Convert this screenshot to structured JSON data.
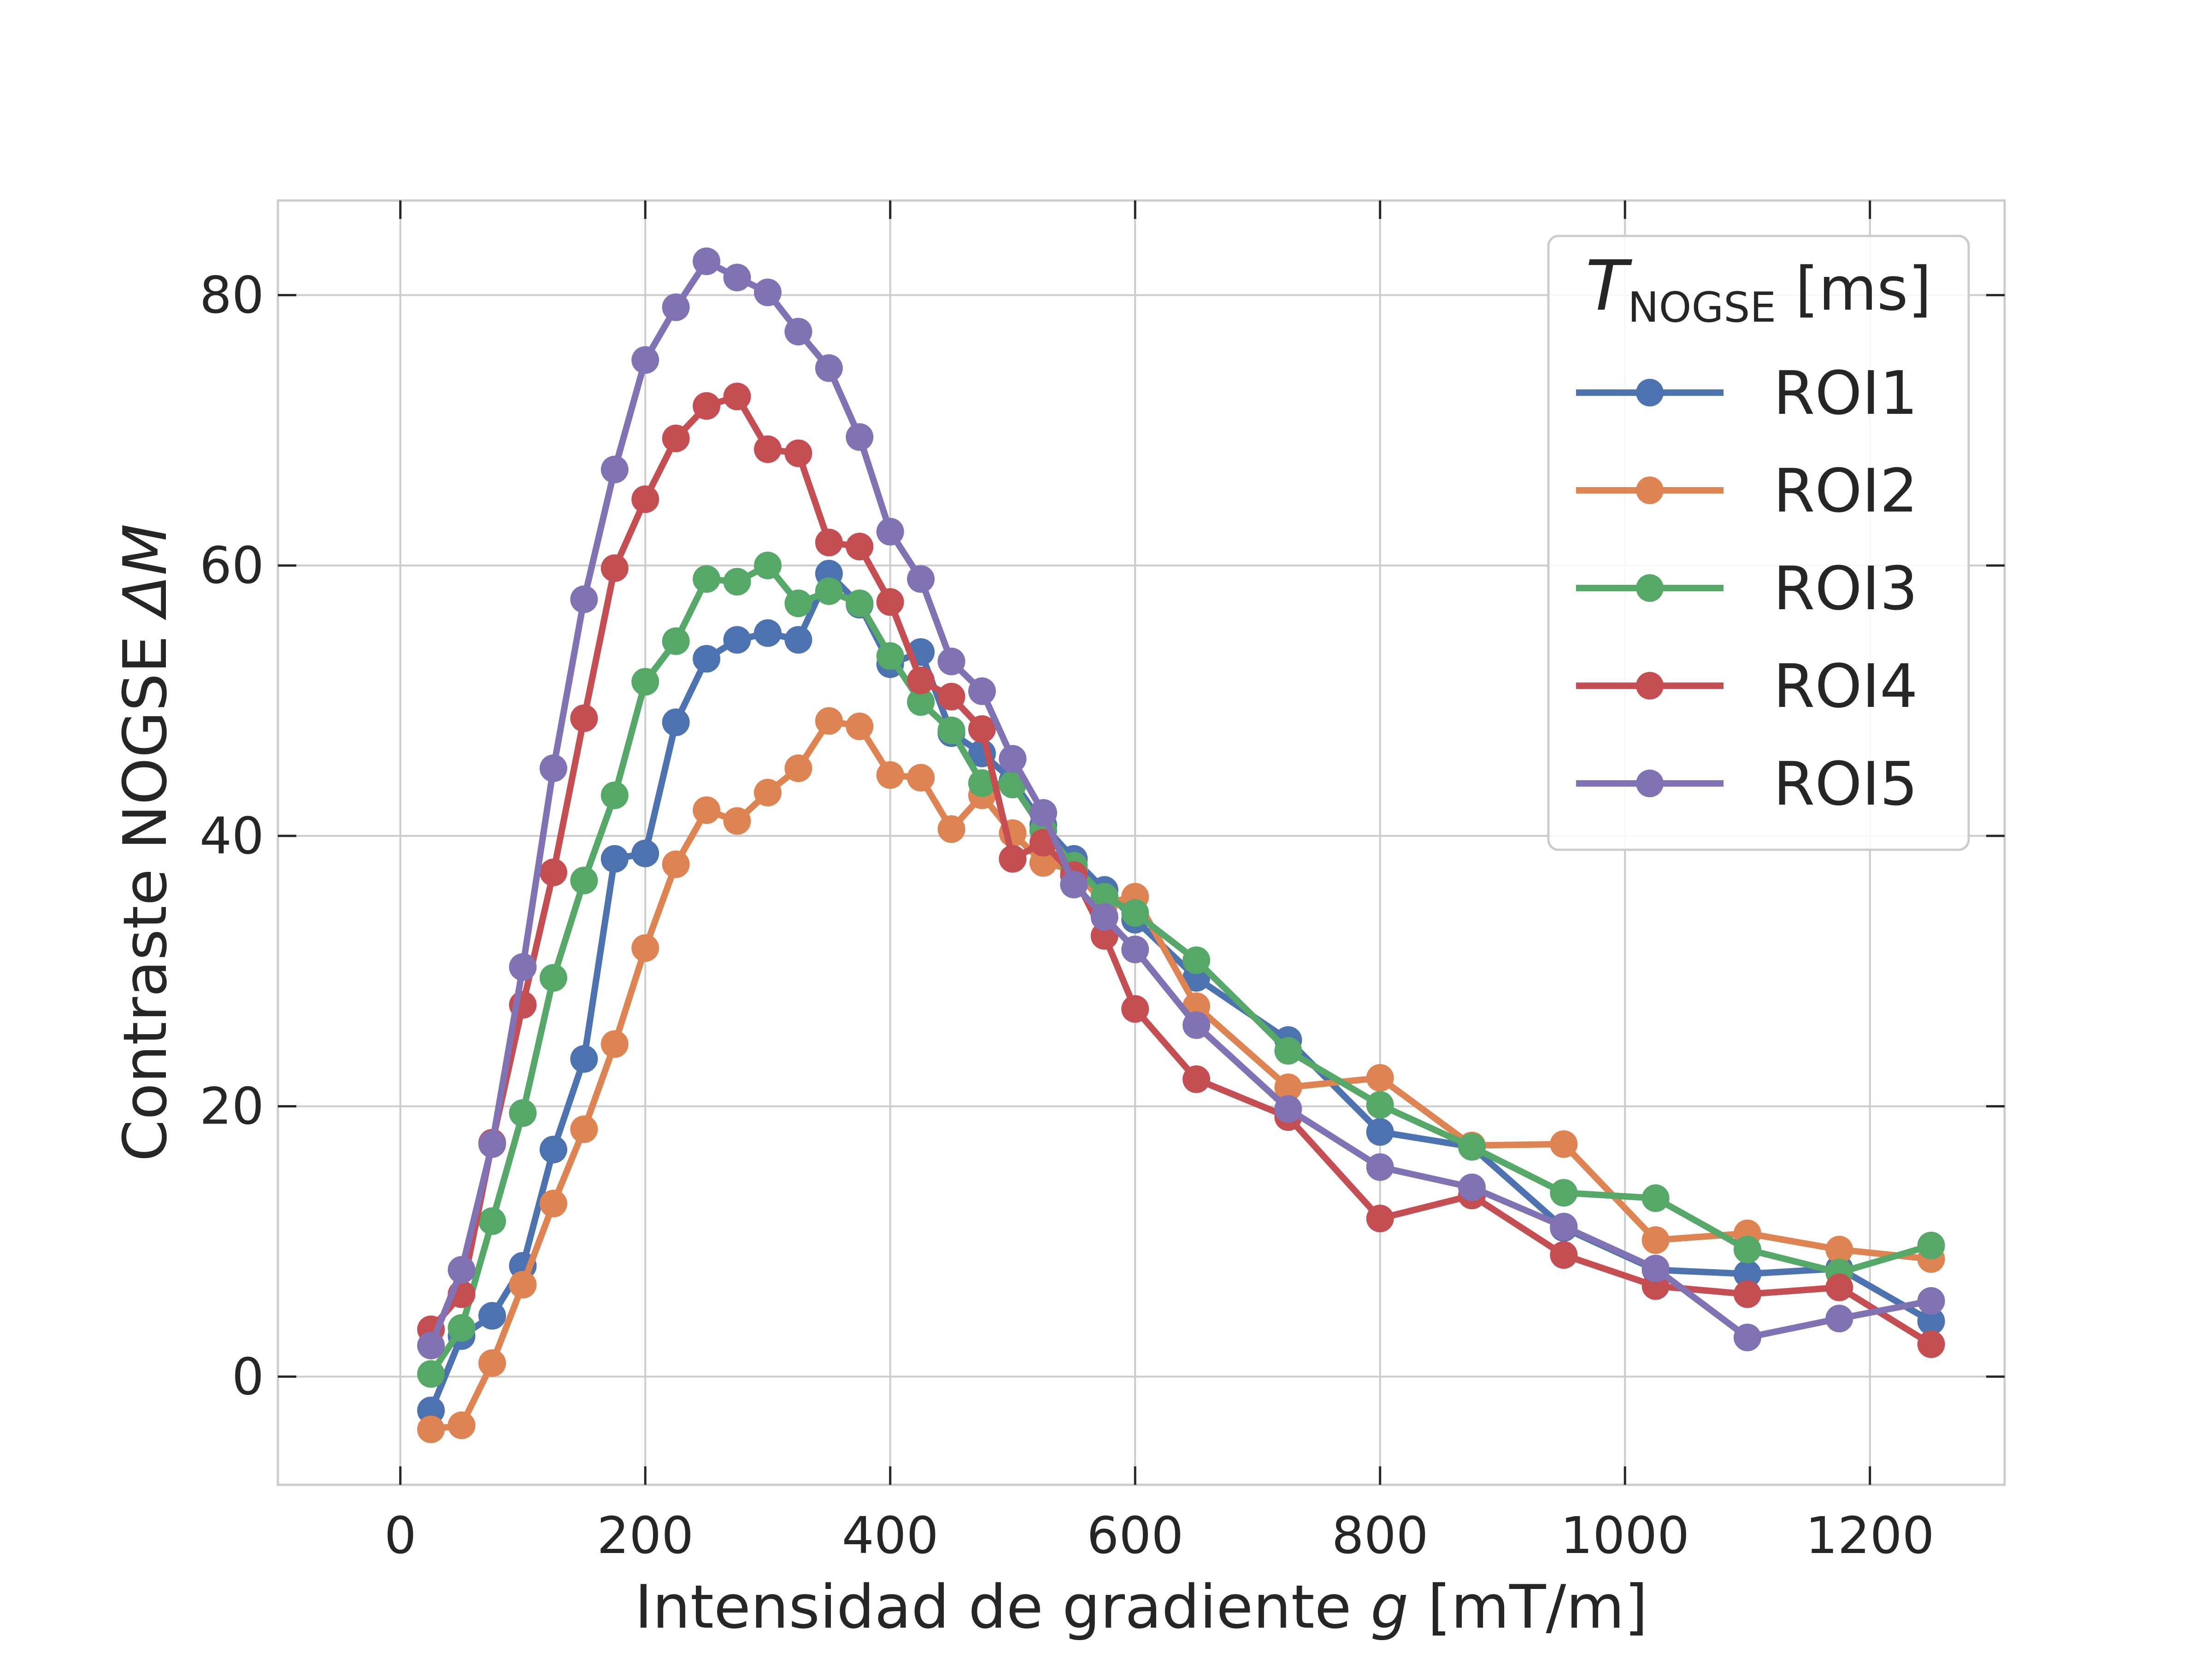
{
  "chart_data": {
    "type": "line",
    "xlabel": {
      "prefix": "Intensidad de gradiente ",
      "var": "g",
      "suffix": " [mT/m]"
    },
    "ylabel": {
      "prefix": "Contraste NOGSE ",
      "var": "ΔM"
    },
    "xlim": [
      -100,
      1310
    ],
    "ylim": [
      -8,
      87
    ],
    "xticks": [
      0,
      200,
      400,
      600,
      800,
      1000,
      1200
    ],
    "yticks": [
      0,
      20,
      40,
      60,
      80
    ],
    "grid": true,
    "legend": {
      "placement": "top-right",
      "title_var": "T",
      "title_sub": "NOGSE",
      "title_suffix": " [ms]"
    },
    "series": [
      {
        "name": "ROI1",
        "color": "#4c72b0",
        "x": [
          25,
          50,
          75,
          100,
          125,
          150,
          175,
          200,
          225,
          250,
          275,
          300,
          325,
          350,
          375,
          400,
          425,
          450,
          475,
          500,
          525,
          550,
          575,
          600,
          650,
          725,
          800,
          875,
          950,
          1025,
          1100,
          1175,
          1250
        ],
        "y": [
          -2.5,
          3.0,
          4.5,
          8.2,
          16.8,
          23.5,
          38.3,
          38.7,
          48.4,
          53.1,
          54.5,
          55.0,
          54.5,
          59.4,
          57.1,
          52.7,
          53.6,
          47.6,
          46.1,
          44.1,
          40.8,
          38.3,
          36.0,
          33.8,
          29.5,
          24.9,
          18.1,
          17.0,
          11.0,
          7.9,
          7.6,
          8.0,
          4.1
        ]
      },
      {
        "name": "ROI2",
        "color": "#dd8452",
        "x": [
          25,
          50,
          75,
          100,
          125,
          150,
          175,
          200,
          225,
          250,
          275,
          300,
          325,
          350,
          375,
          400,
          425,
          450,
          475,
          500,
          525,
          550,
          575,
          600,
          650,
          725,
          800,
          875,
          950,
          1025,
          1100,
          1175,
          1250
        ],
        "y": [
          -3.9,
          -3.6,
          1.0,
          6.8,
          12.8,
          18.3,
          24.6,
          31.7,
          37.9,
          41.9,
          41.1,
          43.2,
          45.0,
          48.5,
          48.1,
          44.5,
          44.3,
          40.5,
          43.0,
          40.2,
          38.0,
          37.5,
          35.0,
          35.5,
          27.4,
          21.4,
          22.1,
          17.1,
          17.2,
          10.1,
          10.6,
          9.4,
          8.7
        ]
      },
      {
        "name": "ROI3",
        "color": "#55a868",
        "x": [
          25,
          50,
          75,
          100,
          125,
          150,
          175,
          200,
          225,
          250,
          275,
          300,
          325,
          350,
          375,
          400,
          425,
          450,
          475,
          500,
          525,
          550,
          575,
          600,
          650,
          725,
          800,
          875,
          950,
          1025,
          1100,
          1175,
          1250
        ],
        "y": [
          0.2,
          3.6,
          11.5,
          19.5,
          29.5,
          36.7,
          43.0,
          51.4,
          54.4,
          59.0,
          58.8,
          60.0,
          57.2,
          58.1,
          57.2,
          53.3,
          49.9,
          47.8,
          43.9,
          43.8,
          40.4,
          37.8,
          35.5,
          34.3,
          30.8,
          24.1,
          20.1,
          17.0,
          13.6,
          13.2,
          9.4,
          7.7,
          9.7
        ]
      },
      {
        "name": "ROI4",
        "color": "#c44e52",
        "x": [
          25,
          50,
          75,
          100,
          125,
          150,
          175,
          200,
          225,
          250,
          275,
          300,
          325,
          350,
          375,
          400,
          425,
          450,
          475,
          500,
          525,
          550,
          575,
          600,
          650,
          725,
          800,
          875,
          950,
          1025,
          1100,
          1175,
          1250
        ],
        "y": [
          3.5,
          6.1,
          17.3,
          27.5,
          37.3,
          48.7,
          59.8,
          64.9,
          69.4,
          71.8,
          72.5,
          68.6,
          68.3,
          61.7,
          61.4,
          57.3,
          51.5,
          50.3,
          47.9,
          38.3,
          39.5,
          37.1,
          32.6,
          27.2,
          22.0,
          19.2,
          11.7,
          13.4,
          9.0,
          6.7,
          6.1,
          6.6,
          2.4
        ]
      },
      {
        "name": "ROI5",
        "color": "#8172b3",
        "x": [
          25,
          50,
          75,
          100,
          125,
          150,
          175,
          200,
          225,
          250,
          275,
          300,
          325,
          350,
          375,
          400,
          425,
          450,
          475,
          500,
          525,
          550,
          575,
          600,
          650,
          725,
          800,
          875,
          950,
          1025,
          1100,
          1175,
          1250
        ],
        "y": [
          2.3,
          7.9,
          17.2,
          30.3,
          45.0,
          57.5,
          67.1,
          75.2,
          79.1,
          82.5,
          81.3,
          80.2,
          77.3,
          74.6,
          69.5,
          62.5,
          59.0,
          52.9,
          50.7,
          45.7,
          41.7,
          36.4,
          34.0,
          31.6,
          26.0,
          19.8,
          15.5,
          14.0,
          11.1,
          8.0,
          2.9,
          4.3,
          5.6
        ]
      }
    ]
  }
}
